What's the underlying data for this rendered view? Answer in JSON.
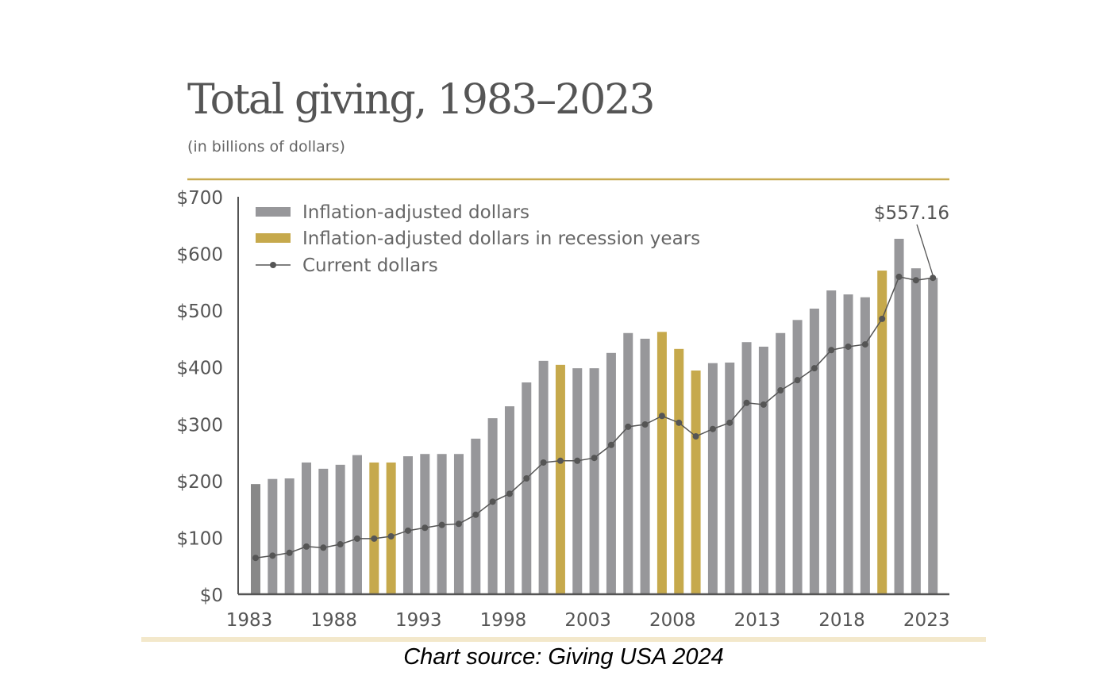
{
  "chart_data": {
    "type": "bar",
    "title": "Total giving, 1983–2023",
    "subtitle": "(in billions of dollars)",
    "source": "Chart source: Giving USA 2024",
    "ylim": [
      0,
      700
    ],
    "yticks": [
      "$0",
      "$100",
      "$200",
      "$300",
      "$400",
      "$500",
      "$600",
      "$700"
    ],
    "xtick_labels": [
      "1983",
      "1988",
      "1993",
      "1998",
      "2003",
      "2008",
      "2013",
      "2018",
      "2023"
    ],
    "legend_position": "top-left",
    "colors": {
      "bar": "#97979a",
      "bar_first": "#888888",
      "recession": "#c6a94c",
      "line": "#555555",
      "rule": "#c8aa50",
      "footer_rule": "#f3e8cb"
    },
    "annotation": "$557.16",
    "categories": [
      1983,
      1984,
      1985,
      1986,
      1987,
      1988,
      1989,
      1990,
      1991,
      1992,
      1993,
      1994,
      1995,
      1996,
      1997,
      1998,
      1999,
      2000,
      2001,
      2002,
      2003,
      2004,
      2005,
      2006,
      2007,
      2008,
      2009,
      2010,
      2011,
      2012,
      2013,
      2014,
      2015,
      2016,
      2017,
      2018,
      2019,
      2020,
      2021,
      2022,
      2023
    ],
    "recession_years": [
      1990,
      1991,
      2001,
      2007,
      2008,
      2009,
      2020
    ],
    "series": [
      {
        "name": "Inflation-adjusted dollars",
        "type": "bar",
        "values": [
          194,
          203,
          204,
          232,
          221,
          228,
          245,
          232,
          232,
          243,
          247,
          247,
          247,
          274,
          310,
          331,
          373,
          411,
          404,
          398,
          398,
          425,
          460,
          450,
          462,
          432,
          394,
          407,
          408,
          444,
          436,
          460,
          483,
          503,
          535,
          528,
          523,
          570,
          626,
          574,
          557.16
        ]
      },
      {
        "name": "Inflation-adjusted dollars in recession years",
        "type": "bar"
      },
      {
        "name": "Current dollars",
        "type": "line",
        "values": [
          64,
          68,
          73,
          84,
          82,
          88,
          98,
          98,
          102,
          112,
          117,
          122,
          124,
          140,
          163,
          177,
          204,
          232,
          235,
          235,
          240,
          263,
          295,
          299,
          314,
          302,
          278,
          291,
          302,
          337,
          334,
          359,
          377,
          398,
          430,
          436,
          440,
          485,
          559,
          553,
          557.16
        ]
      }
    ]
  }
}
